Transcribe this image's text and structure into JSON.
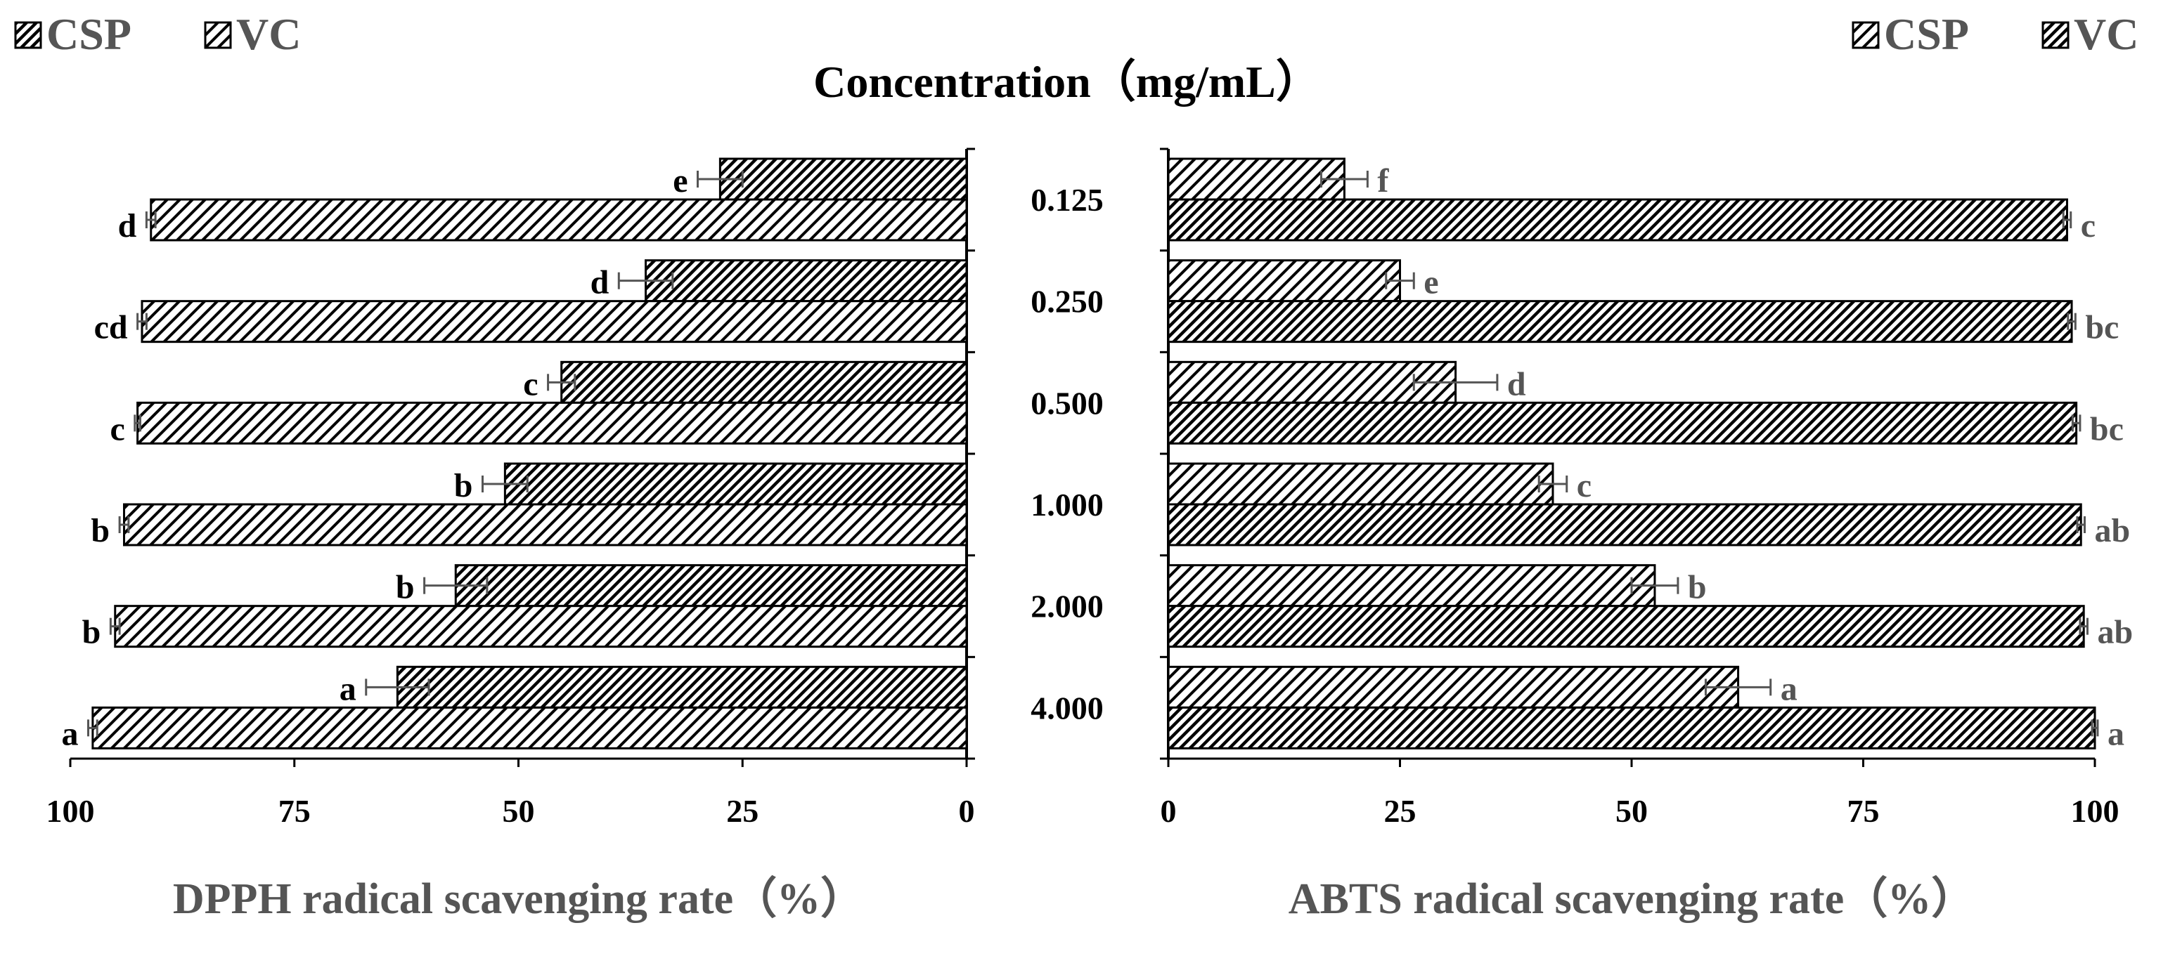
{
  "chart_data": {
    "type": "bar",
    "orientation": "horizontal",
    "layout": "mirrored-pair",
    "shared_label": "Concentration（mg/mL）",
    "categories": [
      "0.125",
      "0.250",
      "0.500",
      "1.000",
      "2.000",
      "4.000"
    ],
    "panels": [
      {
        "id": "dpph",
        "xlabel": "DPPH radical scavenging rate（%）",
        "direction": "reversed",
        "xlim": [
          0,
          100
        ],
        "ticks": [
          100,
          75,
          50,
          25,
          0
        ],
        "legend": {
          "position": "top-left",
          "order": [
            "CSP",
            "VC"
          ]
        },
        "series": [
          {
            "name": "CSP",
            "pattern": "hatch-dense",
            "values": [
              27.5,
              35.8,
              45.2,
              51.5,
              57,
              63.5
            ],
            "errors": [
              2.5,
              3.0,
              1.5,
              2.5,
              3.5,
              3.5
            ],
            "letters": [
              "e",
              "d",
              "c",
              "b",
              "b",
              "a"
            ]
          },
          {
            "name": "VC",
            "pattern": "hatch-wide",
            "values": [
              91,
              92,
              92.5,
              94,
              95,
              97.5
            ],
            "errors": [
              0.5,
              0.5,
              0.3,
              0.5,
              0.5,
              0.5
            ],
            "letters": [
              "d",
              "cd",
              "c",
              "b",
              "b",
              "a"
            ]
          }
        ]
      },
      {
        "id": "abts",
        "xlabel": "ABTS radical scavenging rate（%）",
        "direction": "normal",
        "xlim": [
          0,
          100
        ],
        "ticks": [
          0,
          25,
          50,
          75,
          100
        ],
        "legend": {
          "position": "top-right",
          "order": [
            "CSP",
            "VC"
          ]
        },
        "series": [
          {
            "name": "CSP",
            "pattern": "hatch-wide",
            "values": [
              19,
              25,
              31,
              41.5,
              52.5,
              61.5
            ],
            "errors": [
              2.5,
              1.5,
              4.5,
              1.5,
              2.5,
              3.5
            ],
            "letters": [
              "f",
              "e",
              "d",
              "c",
              "b",
              "a"
            ]
          },
          {
            "name": "VC",
            "pattern": "hatch-dense",
            "values": [
              97,
              97.5,
              98,
              98.5,
              98.8,
              100
            ],
            "errors": [
              0.4,
              0.4,
              0.4,
              0.4,
              0.4,
              0.3
            ],
            "letters": [
              "c",
              "bc",
              "bc",
              "ab",
              "ab",
              "a"
            ]
          }
        ]
      }
    ]
  }
}
